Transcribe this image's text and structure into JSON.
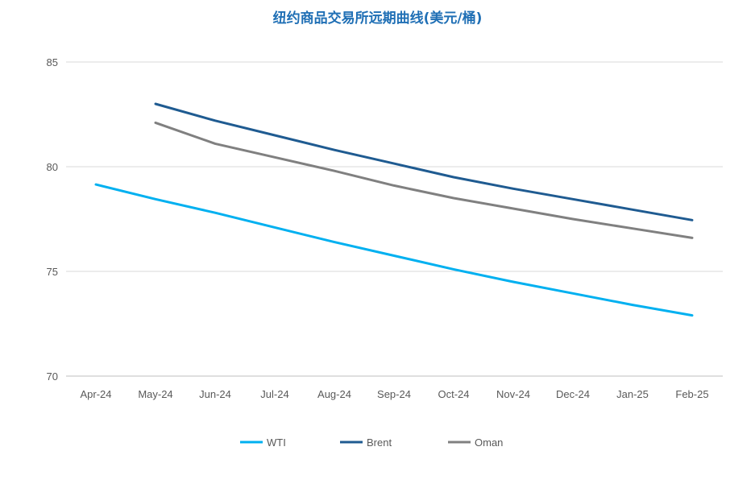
{
  "chart_data": {
    "type": "line",
    "title": "纽约商品交易所远期曲线(美元/桶)",
    "xlabel": "",
    "ylabel": "",
    "categories": [
      "Apr-24",
      "May-24",
      "Jun-24",
      "Jul-24",
      "Aug-24",
      "Sep-24",
      "Oct-24",
      "Nov-24",
      "Dec-24",
      "Jan-25",
      "Feb-25"
    ],
    "ylim": [
      70,
      85
    ],
    "yticks": [
      70,
      75,
      80,
      85
    ],
    "grid": true,
    "legend_position": "bottom",
    "series": [
      {
        "name": "WTI",
        "color": "#00b0f0",
        "values": [
          79.15,
          78.45,
          77.8,
          77.1,
          76.4,
          75.75,
          75.1,
          74.5,
          73.95,
          73.4,
          72.9
        ]
      },
      {
        "name": "Brent",
        "color": "#1f5b91",
        "values": [
          null,
          83.0,
          82.2,
          81.5,
          80.8,
          80.15,
          79.5,
          78.95,
          78.45,
          77.95,
          77.45
        ]
      },
      {
        "name": "Oman",
        "color": "#808080",
        "values": [
          null,
          82.1,
          81.1,
          80.45,
          79.8,
          79.1,
          78.5,
          78.0,
          77.5,
          77.05,
          76.6
        ]
      }
    ]
  }
}
